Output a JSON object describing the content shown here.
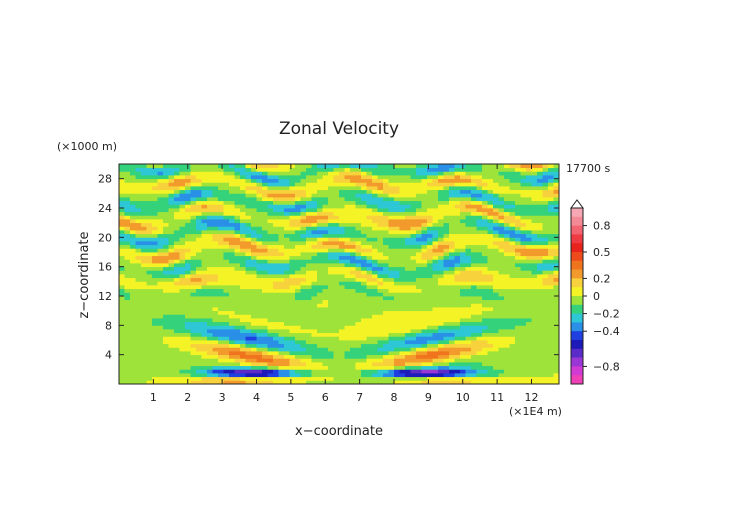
{
  "chart_data": {
    "type": "heatmap",
    "title": "Zonal Velocity",
    "xlabel": "x−coordinate",
    "ylabel": "z−coordinate",
    "x_unit": "(×1E4 m)",
    "y_unit": "(×1000 m)",
    "time_label": "17700 s",
    "xlim": [
      0,
      12.8
    ],
    "ylim": [
      0,
      30
    ],
    "x_ticks": [
      1,
      2,
      3,
      4,
      5,
      6,
      7,
      8,
      9,
      10,
      11,
      12
    ],
    "y_ticks": [
      4,
      8,
      12,
      16,
      20,
      24,
      28
    ],
    "colorbar": {
      "tick_labels": [
        "0.8",
        "0.5",
        "0.2",
        "0",
        "−0.2",
        "−0.4",
        "−0.8"
      ],
      "tick_values": [
        0.8,
        0.5,
        0.2,
        0,
        -0.2,
        -0.4,
        -0.8
      ],
      "levels": [
        {
          "from": 0.9,
          "to": 1.0,
          "color": "#f7a7b4"
        },
        {
          "from": 0.8,
          "to": 0.9,
          "color": "#f48a96"
        },
        {
          "from": 0.7,
          "to": 0.8,
          "color": "#f26470"
        },
        {
          "from": 0.6,
          "to": 0.7,
          "color": "#ee3b43"
        },
        {
          "from": 0.5,
          "to": 0.6,
          "color": "#e8231e"
        },
        {
          "from": 0.4,
          "to": 0.5,
          "color": "#ef4a1c"
        },
        {
          "from": 0.3,
          "to": 0.4,
          "color": "#f0731e"
        },
        {
          "from": 0.2,
          "to": 0.3,
          "color": "#f29a2c"
        },
        {
          "from": 0.1,
          "to": 0.2,
          "color": "#f8d23c"
        },
        {
          "from": 0.0,
          "to": 0.1,
          "color": "#f4f326"
        },
        {
          "from": -0.1,
          "to": 0.0,
          "color": "#9ee33a"
        },
        {
          "from": -0.2,
          "to": -0.1,
          "color": "#34d27a"
        },
        {
          "from": -0.3,
          "to": -0.2,
          "color": "#2dc7d6"
        },
        {
          "from": -0.4,
          "to": -0.3,
          "color": "#2a8fe6"
        },
        {
          "from": -0.5,
          "to": -0.4,
          "color": "#1f3fe0"
        },
        {
          "from": -0.6,
          "to": -0.5,
          "color": "#1c1ab8"
        },
        {
          "from": -0.7,
          "to": -0.6,
          "color": "#5a2bc8"
        },
        {
          "from": -0.8,
          "to": -0.7,
          "color": "#9a36d6"
        },
        {
          "from": -0.9,
          "to": -0.8,
          "color": "#d23ad4"
        },
        {
          "from": -1.0,
          "to": -0.9,
          "color": "#f040b8"
        }
      ]
    }
  }
}
